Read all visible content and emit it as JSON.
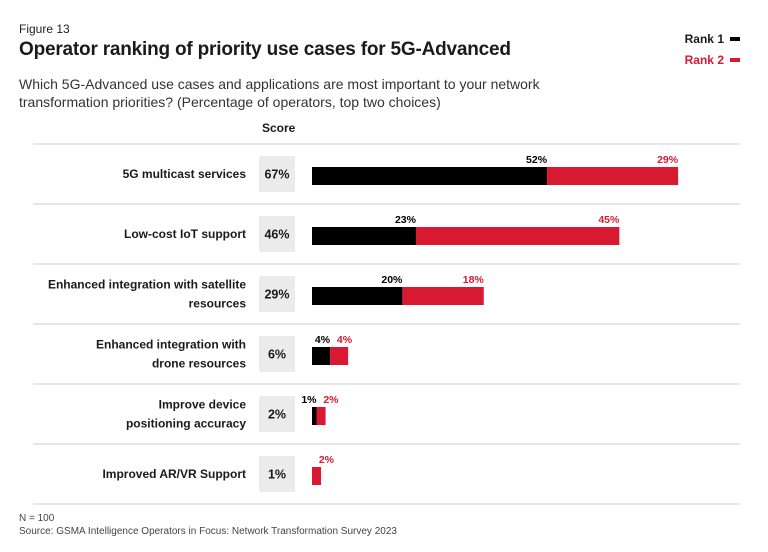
{
  "figure_label": "Figure 13",
  "title": "Operator ranking of priority use cases for 5G-Advanced",
  "subtitle": "Which 5G-Advanced use cases and applications are most important to your network transformation priorities? (Percentage of operators, top two choices)",
  "score_header": "Score",
  "footnote": {
    "n": "N = 100",
    "source": "Source: GSMA Intelligence Operators in Focus: Network Transformation Survey 2023"
  },
  "colors": {
    "rank1": "#000000",
    "rank2": "#d71a32",
    "score_box": "#ebebeb",
    "separator": "#cfcfcf"
  },
  "chart_data": {
    "type": "bar",
    "orientation": "horizontal",
    "stacked": true,
    "categories": [
      "5G multicast services",
      "Low-cost IoT support",
      "Enhanced integration with satellite resources",
      "Enhanced integration with drone resources",
      "Improve device positioning accuracy",
      "Improved AR/VR Support"
    ],
    "category_lines": [
      [
        "5G multicast services"
      ],
      [
        "Low-cost IoT support"
      ],
      [
        "Enhanced integration with satellite",
        "resources"
      ],
      [
        "Enhanced integration with",
        "drone resources"
      ],
      [
        "Improve device",
        "positioning accuracy"
      ],
      [
        "Improved AR/VR Support"
      ]
    ],
    "scores": [
      "67%",
      "46%",
      "29%",
      "6%",
      "2%",
      "1%"
    ],
    "series": [
      {
        "name": "Rank 1",
        "values": [
          52,
          23,
          20,
          4,
          1,
          0
        ],
        "labels": [
          "52%",
          "23%",
          "20%",
          "4%",
          "1%",
          ""
        ]
      },
      {
        "name": "Rank 2",
        "values": [
          29,
          45,
          18,
          4,
          2,
          2
        ],
        "labels": [
          "29%",
          "45%",
          "18%",
          "4%",
          "2%",
          "2%"
        ]
      }
    ],
    "legend_position": "top-right",
    "grid": false
  }
}
